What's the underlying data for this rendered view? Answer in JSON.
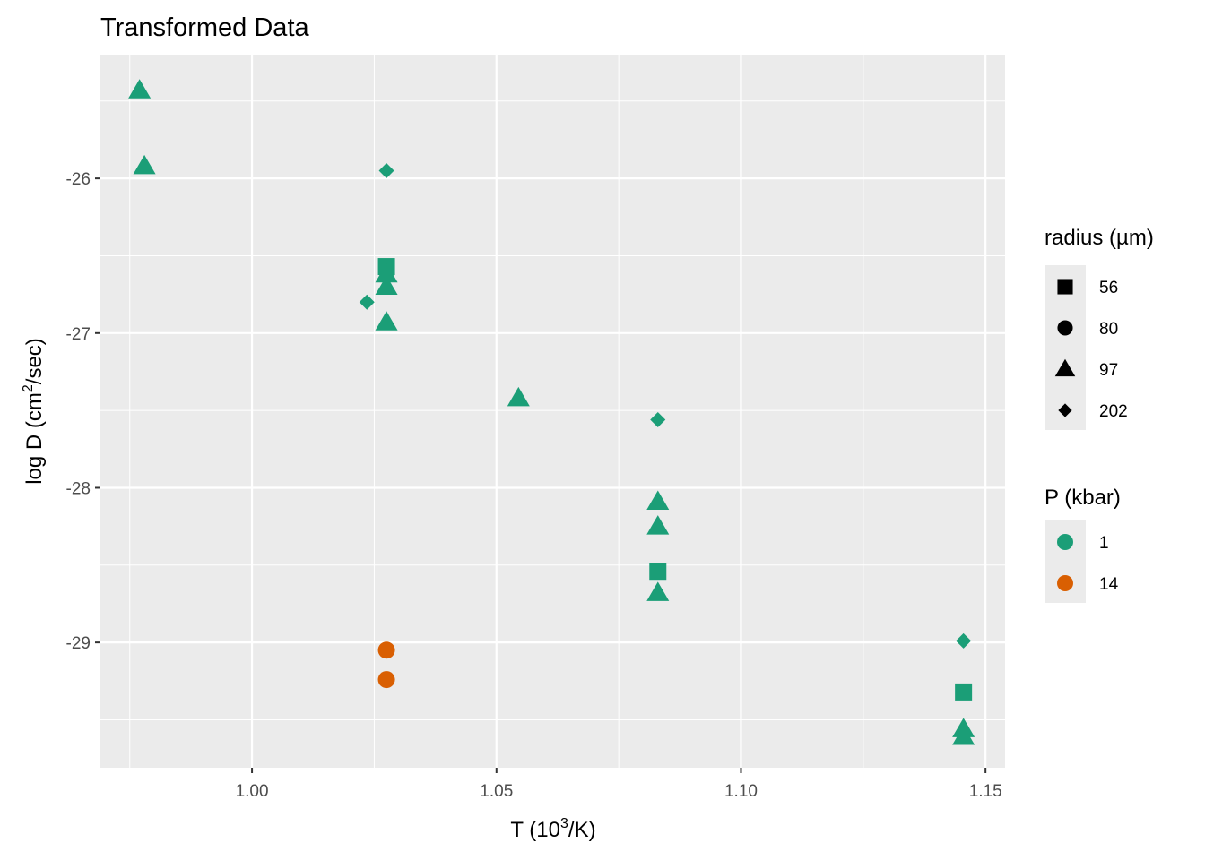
{
  "chart_data": {
    "type": "scatter",
    "title": "Transformed Data",
    "xlabel": {
      "pre": "T (10",
      "sup": "3",
      "post": "/K)"
    },
    "ylabel": {
      "pre": "log D (cm",
      "sup": "2",
      "post": "/sec)"
    },
    "xlim": [
      0.969,
      1.154
    ],
    "ylim": [
      -29.81,
      -25.2
    ],
    "x_ticks": [
      1.0,
      1.05,
      1.1,
      1.15
    ],
    "x_tick_labels": [
      "1.00",
      "1.05",
      "1.10",
      "1.15"
    ],
    "y_ticks": [
      -29,
      -28,
      -27,
      -26
    ],
    "y_tick_labels": [
      "-29",
      "-28",
      "-27",
      "-26"
    ],
    "grid": true,
    "legend_position": "right",
    "shape_legend": {
      "title": "radius (µm)",
      "entries": [
        {
          "label": "56",
          "shape": "square"
        },
        {
          "label": "80",
          "shape": "circle"
        },
        {
          "label": "97",
          "shape": "triangle"
        },
        {
          "label": "202",
          "shape": "diamond"
        }
      ]
    },
    "color_legend": {
      "title": "P (kbar)",
      "entries": [
        {
          "label": "1",
          "color": "#1b9e77"
        },
        {
          "label": "14",
          "color": "#d95f02"
        }
      ]
    },
    "points": [
      {
        "x": 0.977,
        "y": -25.43,
        "radius": "97",
        "P": "1"
      },
      {
        "x": 0.978,
        "y": -25.92,
        "radius": "97",
        "P": "1"
      },
      {
        "x": 1.0275,
        "y": -25.95,
        "radius": "202",
        "P": "1"
      },
      {
        "x": 1.0275,
        "y": -26.57,
        "radius": "56",
        "P": "1"
      },
      {
        "x": 1.0275,
        "y": -26.62,
        "radius": "97",
        "P": "1"
      },
      {
        "x": 1.0275,
        "y": -26.7,
        "radius": "97",
        "P": "1"
      },
      {
        "x": 1.0235,
        "y": -26.8,
        "radius": "202",
        "P": "1"
      },
      {
        "x": 1.0275,
        "y": -26.93,
        "radius": "97",
        "P": "1"
      },
      {
        "x": 1.0545,
        "y": -27.42,
        "radius": "97",
        "P": "1"
      },
      {
        "x": 1.083,
        "y": -27.56,
        "radius": "202",
        "P": "1"
      },
      {
        "x": 1.083,
        "y": -28.09,
        "radius": "97",
        "P": "1"
      },
      {
        "x": 1.083,
        "y": -28.25,
        "radius": "97",
        "P": "1"
      },
      {
        "x": 1.083,
        "y": -28.54,
        "radius": "56",
        "P": "1"
      },
      {
        "x": 1.083,
        "y": -28.68,
        "radius": "97",
        "P": "1"
      },
      {
        "x": 1.0275,
        "y": -29.05,
        "radius": "80",
        "P": "14"
      },
      {
        "x": 1.0275,
        "y": -29.24,
        "radius": "80",
        "P": "14"
      },
      {
        "x": 1.1455,
        "y": -28.99,
        "radius": "202",
        "P": "1"
      },
      {
        "x": 1.1455,
        "y": -29.32,
        "radius": "56",
        "P": "1"
      },
      {
        "x": 1.1455,
        "y": -29.56,
        "radius": "97",
        "P": "1"
      },
      {
        "x": 1.1455,
        "y": -29.61,
        "radius": "97",
        "P": "1"
      }
    ]
  }
}
